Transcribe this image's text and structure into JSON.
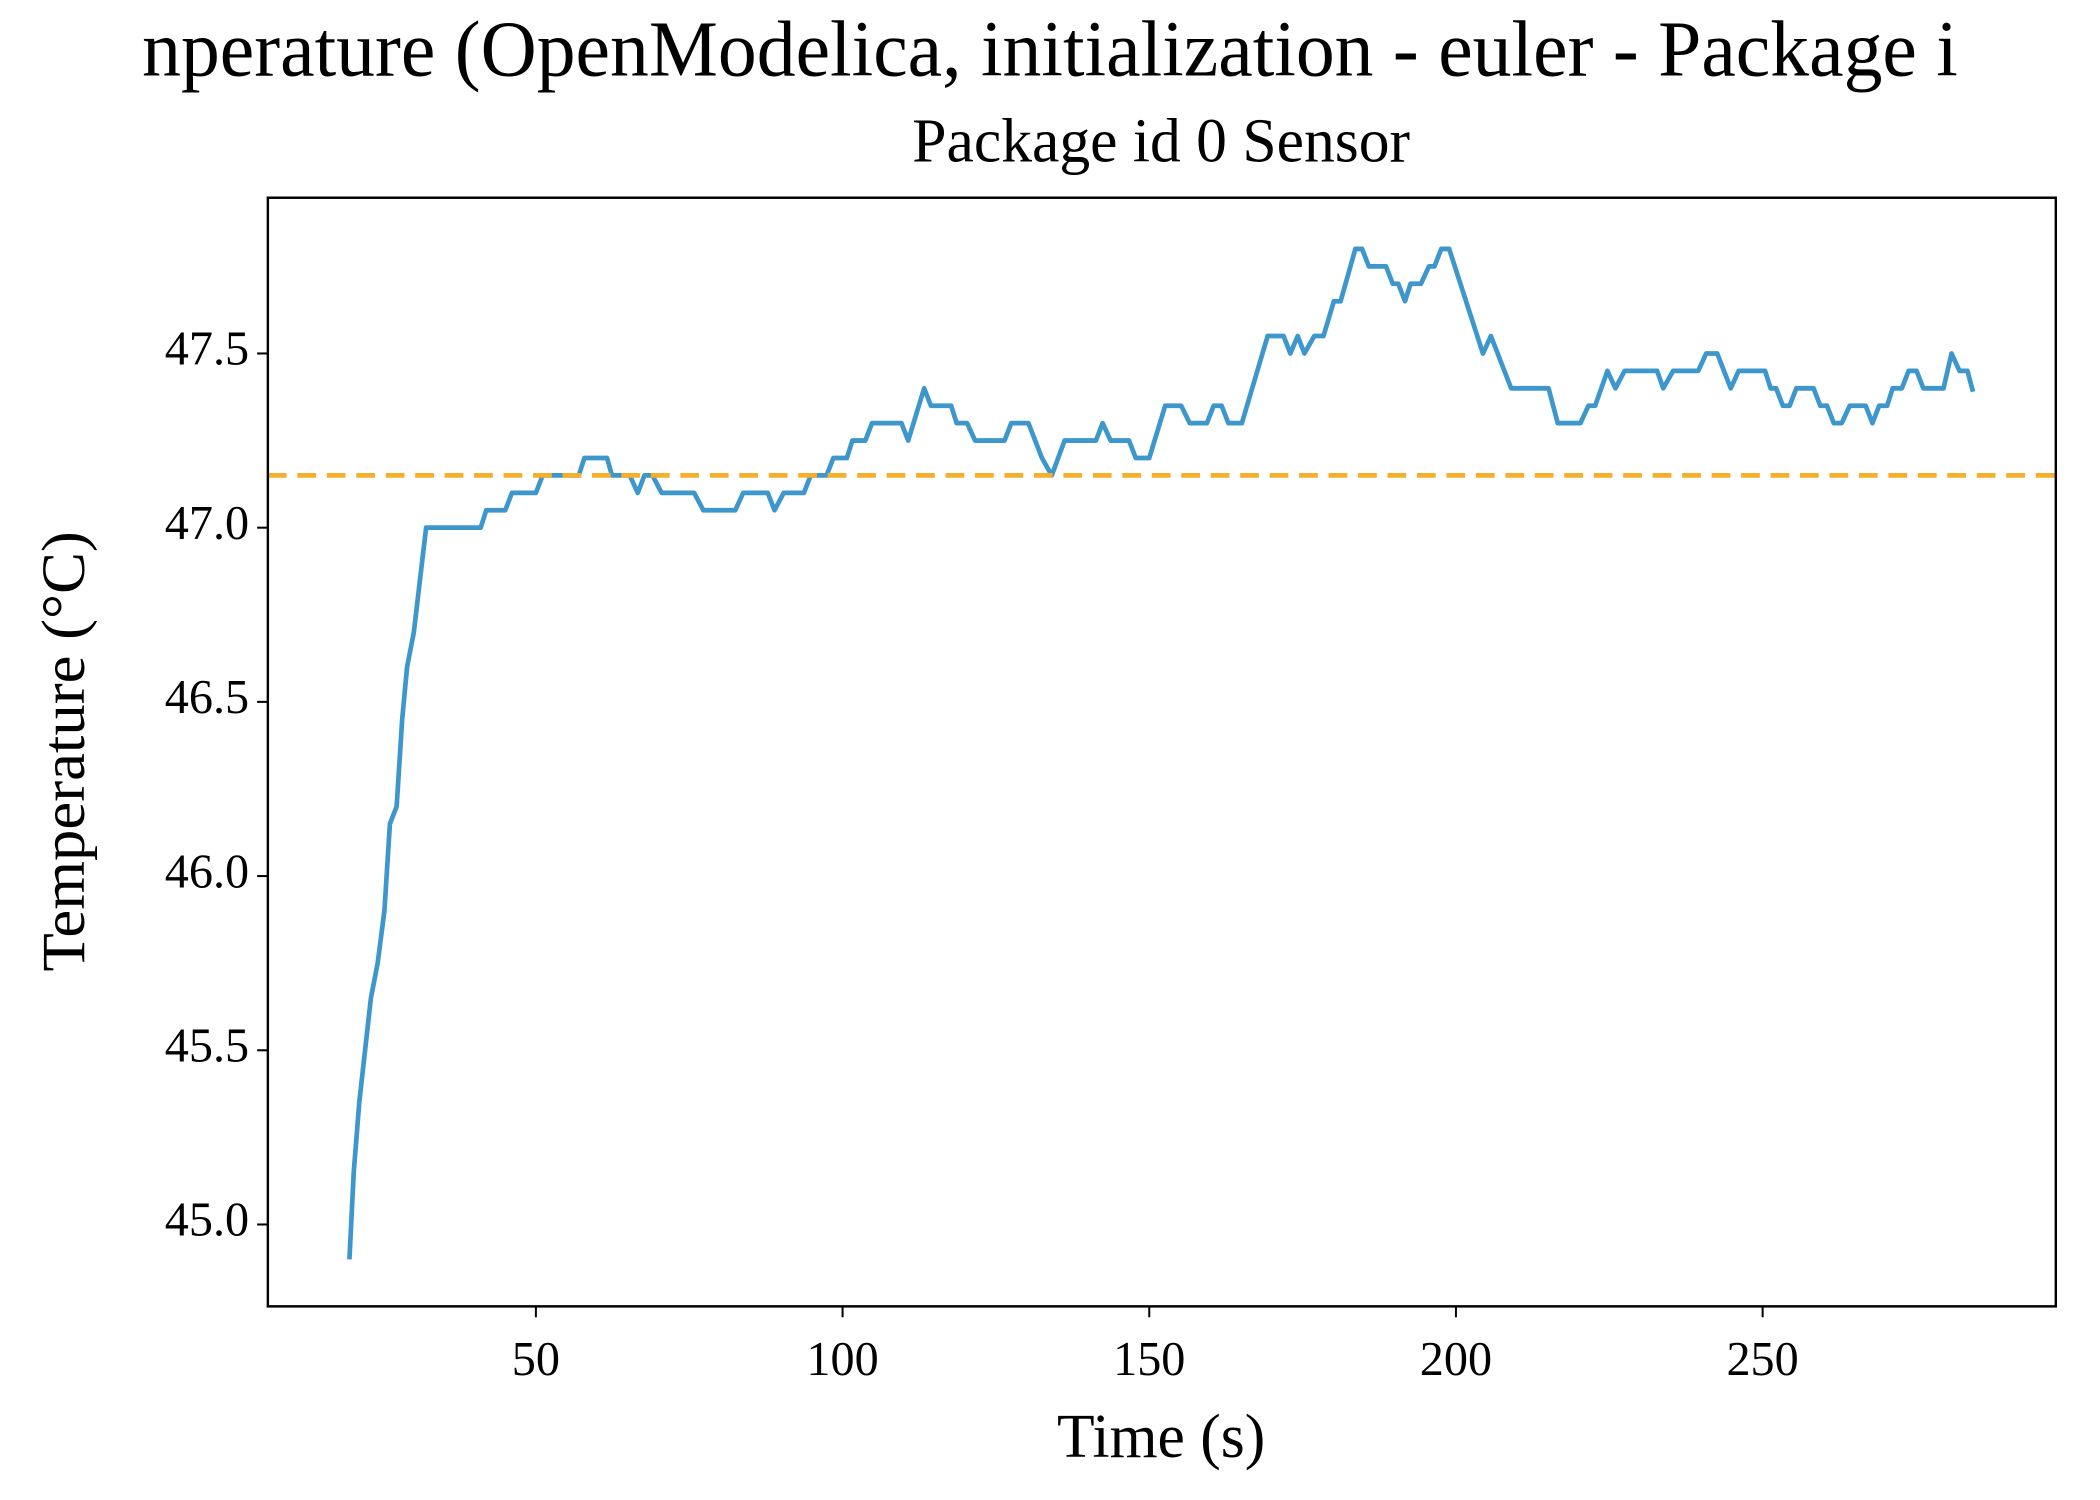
{
  "chart_data": {
    "type": "line",
    "title": "nperature (OpenModelica, initialization - euler - Package i",
    "subtitle": "Package id 0 Sensor",
    "x_label": "Time (s)",
    "y_label": "Temperature (°C)",
    "x": [
      19.6,
      20.3,
      21.2,
      23.1,
      24.2,
      25.3,
      26.2,
      27.3,
      28.2,
      29.0,
      30.1,
      32.1,
      41.0,
      41.9,
      45.0,
      46.1,
      50,
      51.1,
      57,
      57.9,
      61.6,
      62.4,
      65.3,
      66.6,
      67.7,
      69,
      70.5,
      75.8,
      77.3,
      82.5,
      83.8,
      87.8,
      88.9,
      90.4,
      93.7,
      94.8,
      97.4,
      98.5,
      100.7,
      101.6,
      103.7,
      104.8,
      109.6,
      110.7,
      113.3,
      114.4,
      117.7,
      118.6,
      120.3,
      121.6,
      126.4,
      127.5,
      130.3,
      132.5,
      134.1,
      136.2,
      141.3,
      142.4,
      143.7,
      146.7,
      147.8,
      150,
      152.6,
      155.2,
      156.6,
      159.4,
      160.5,
      161.8,
      162.9,
      165.1,
      169.3,
      171.9,
      173,
      174.2,
      175.3,
      176.9,
      178.4,
      180.1,
      181.2,
      183.6,
      184.7,
      185.8,
      188.6,
      189.7,
      190.6,
      191.7,
      192.6,
      194.3,
      195.6,
      196.5,
      197.6,
      198.9,
      204.4,
      205.7,
      209,
      215.1,
      216.6,
      220.3,
      221.6,
      222.7,
      224.7,
      226,
      227.5,
      232.8,
      233.8,
      235.4,
      239.5,
      240.8,
      242.6,
      244.8,
      246.1,
      250.4,
      251.3,
      252.2,
      253.3,
      254.4,
      255.5,
      258.3,
      259.4,
      260.5,
      261.6,
      262.9,
      264.2,
      266.8,
      267.9,
      269,
      270.3,
      271.2,
      272.7,
      273.8,
      275.1,
      276.2,
      279.5,
      280.8,
      282.1,
      283.4,
      284.3
    ],
    "series": [
      {
        "color": "#3d97cc",
        "values": [
          44.9,
          45.15,
          45.35,
          45.65,
          45.75,
          45.9,
          46.15,
          46.2,
          46.45,
          46.6,
          46.7,
          47.0,
          47.0,
          47.05,
          47.05,
          47.1,
          47.1,
          47.15,
          47.15,
          47.2,
          47.2,
          47.15,
          47.15,
          47.1,
          47.15,
          47.15,
          47.1,
          47.1,
          47.05,
          47.05,
          47.1,
          47.1,
          47.05,
          47.1,
          47.1,
          47.15,
          47.15,
          47.2,
          47.2,
          47.25,
          47.25,
          47.3,
          47.3,
          47.25,
          47.4,
          47.35,
          47.35,
          47.3,
          47.3,
          47.25,
          47.25,
          47.3,
          47.3,
          47.2,
          47.15,
          47.25,
          47.25,
          47.3,
          47.25,
          47.25,
          47.2,
          47.2,
          47.35,
          47.35,
          47.3,
          47.3,
          47.35,
          47.35,
          47.3,
          47.3,
          47.55,
          47.55,
          47.5,
          47.55,
          47.5,
          47.55,
          47.55,
          47.65,
          47.65,
          47.8,
          47.8,
          47.75,
          47.75,
          47.7,
          47.7,
          47.65,
          47.7,
          47.7,
          47.75,
          47.75,
          47.8,
          47.8,
          47.5,
          47.55,
          47.4,
          47.4,
          47.3,
          47.3,
          47.35,
          47.35,
          47.45,
          47.4,
          47.45,
          47.45,
          47.4,
          47.45,
          47.45,
          47.5,
          47.5,
          47.4,
          47.45,
          47.45,
          47.4,
          47.4,
          47.35,
          47.35,
          47.4,
          47.4,
          47.35,
          47.35,
          47.3,
          47.3,
          47.35,
          47.35,
          47.3,
          47.35,
          47.35,
          47.4,
          47.4,
          47.45,
          47.45,
          47.4,
          47.4,
          47.5,
          47.45,
          47.45,
          47.39
        ]
      }
    ],
    "reference_line": {
      "value": 47.15,
      "color": "#f7ae2a",
      "dashed": true
    },
    "xlim": [
      6.3,
      297.8
    ],
    "ylim": [
      44.765,
      47.947
    ],
    "xticks": [
      50,
      100,
      150,
      200,
      250
    ],
    "yticks": [
      {
        "value": 45,
        "label": "45.0"
      },
      45.5,
      {
        "value": 46,
        "label": "46.0"
      },
      46.5,
      {
        "value": 47,
        "label": "47.0"
      },
      47.5
    ]
  }
}
